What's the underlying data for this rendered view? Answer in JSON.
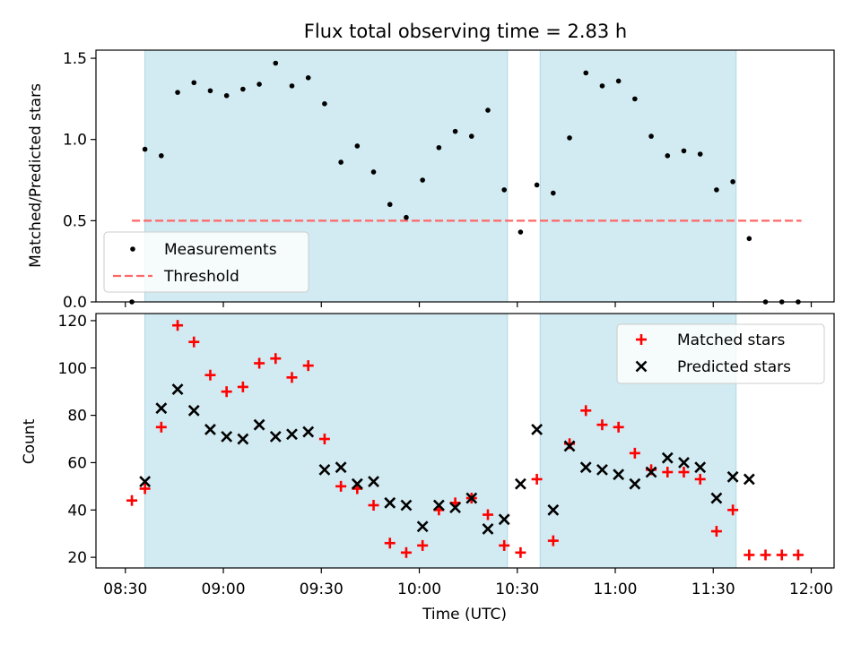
{
  "title": "Flux total observing time = 2.83 h",
  "colors": {
    "span": "#add8e6",
    "measurement": "#000000",
    "threshold": "#ff6666",
    "matched": "#ff0000",
    "predicted": "#000000"
  },
  "chart_data": [
    {
      "type": "scatter",
      "ylabel": "Matched/Predicted stars",
      "ylim": [
        0,
        1.55
      ],
      "yticks": [
        0.0,
        0.5,
        1.0,
        1.5
      ],
      "ytick_labels": [
        "0.0",
        "0.5",
        "1.0",
        "1.5"
      ],
      "legend_placement": "lower-left",
      "shaded_spans": [
        [
          "08:36",
          "10:27"
        ],
        [
          "10:37",
          "11:37"
        ]
      ],
      "threshold": {
        "name": "Threshold",
        "value": 0.5,
        "x_start": "08:32",
        "x_end": "11:57"
      },
      "series": [
        {
          "name": "Measurements",
          "x": [
            "08:32",
            "08:36",
            "08:41",
            "08:46",
            "08:51",
            "08:56",
            "09:01",
            "09:06",
            "09:11",
            "09:16",
            "09:21",
            "09:26",
            "09:31",
            "09:36",
            "09:41",
            "09:46",
            "09:51",
            "09:56",
            "10:01",
            "10:06",
            "10:11",
            "10:16",
            "10:21",
            "10:26",
            "10:31",
            "10:36",
            "10:41",
            "10:46",
            "10:51",
            "10:56",
            "11:01",
            "11:06",
            "11:11",
            "11:16",
            "11:21",
            "11:26",
            "11:31",
            "11:36",
            "11:41",
            "11:46",
            "11:51",
            "11:56"
          ],
          "y": [
            0.0,
            0.94,
            0.9,
            1.29,
            1.35,
            1.3,
            1.27,
            1.31,
            1.34,
            1.47,
            1.33,
            1.38,
            1.22,
            0.86,
            0.96,
            0.8,
            0.6,
            0.52,
            0.75,
            0.95,
            1.05,
            1.02,
            1.18,
            0.69,
            0.43,
            0.72,
            0.67,
            1.01,
            1.41,
            1.33,
            1.36,
            1.25,
            1.02,
            0.9,
            0.93,
            0.91,
            0.69,
            0.74,
            0.39,
            0.0,
            0.0,
            0.0
          ]
        }
      ]
    },
    {
      "type": "scatter",
      "xlabel": "Time (UTC)",
      "ylabel": "Count",
      "ylim": [
        15.5,
        123
      ],
      "yticks": [
        20,
        40,
        60,
        80,
        100,
        120
      ],
      "ytick_labels": [
        "20",
        "40",
        "60",
        "80",
        "100",
        "120"
      ],
      "xticks": [
        "08:30",
        "09:00",
        "09:30",
        "10:00",
        "10:30",
        "11:00",
        "11:30",
        "12:00"
      ],
      "xlim": [
        "08:21",
        "12:07"
      ],
      "legend_placement": "top-right",
      "shaded_spans": [
        [
          "08:36",
          "10:27"
        ],
        [
          "10:37",
          "11:37"
        ]
      ],
      "series": [
        {
          "name": "Matched stars",
          "marker": "plus",
          "x": [
            "08:32",
            "08:36",
            "08:41",
            "08:46",
            "08:51",
            "08:56",
            "09:01",
            "09:06",
            "09:11",
            "09:16",
            "09:21",
            "09:26",
            "09:31",
            "09:36",
            "09:41",
            "09:46",
            "09:51",
            "09:56",
            "10:01",
            "10:06",
            "10:11",
            "10:16",
            "10:21",
            "10:26",
            "10:31",
            "10:36",
            "10:41",
            "10:46",
            "10:51",
            "10:56",
            "11:01",
            "11:06",
            "11:11",
            "11:16",
            "11:21",
            "11:26",
            "11:31",
            "11:36",
            "11:41",
            "11:46",
            "11:51",
            "11:56"
          ],
          "y": [
            44,
            49,
            75,
            118,
            111,
            97,
            90,
            92,
            102,
            104,
            96,
            101,
            70,
            50,
            49,
            42,
            26,
            22,
            25,
            40,
            43,
            45,
            38,
            25,
            22,
            53,
            27,
            68,
            82,
            76,
            75,
            64,
            57,
            56,
            56,
            53,
            31,
            40,
            21,
            21,
            21,
            21
          ]
        },
        {
          "name": "Predicted stars",
          "marker": "x",
          "x": [
            "08:36",
            "08:41",
            "08:46",
            "08:51",
            "08:56",
            "09:01",
            "09:06",
            "09:11",
            "09:16",
            "09:21",
            "09:26",
            "09:31",
            "09:36",
            "09:41",
            "09:46",
            "09:51",
            "09:56",
            "10:01",
            "10:06",
            "10:11",
            "10:16",
            "10:21",
            "10:26",
            "10:31",
            "10:36",
            "10:41",
            "10:46",
            "10:51",
            "10:56",
            "11:01",
            "11:06",
            "11:11",
            "11:16",
            "11:21",
            "11:26",
            "11:31",
            "11:36",
            "11:41"
          ],
          "y": [
            52,
            83,
            91,
            82,
            74,
            71,
            70,
            76,
            71,
            72,
            73,
            57,
            58,
            51,
            52,
            43,
            42,
            33,
            42,
            41,
            45,
            32,
            36,
            51,
            74,
            40,
            67,
            58,
            57,
            55,
            51,
            56,
            62,
            60,
            58,
            45,
            54,
            53
          ]
        }
      ]
    }
  ]
}
